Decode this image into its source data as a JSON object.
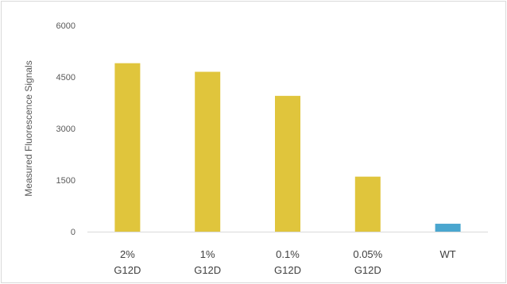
{
  "chart_data": {
    "type": "bar",
    "title": "",
    "xlabel": "",
    "ylabel": "Measured Fluorescence Signals",
    "ylim": [
      0,
      6000
    ],
    "yticks": [
      0,
      1500,
      3000,
      4500,
      6000
    ],
    "grid": false,
    "legend": "none",
    "categories": [
      [
        "2%",
        "G12D"
      ],
      [
        "1%",
        "G12D"
      ],
      [
        "0.1%",
        "G12D"
      ],
      [
        "0.05%",
        "G12D"
      ],
      [
        "WT"
      ]
    ],
    "values": [
      4900,
      4650,
      3950,
      1600,
      230
    ],
    "colors": [
      "#e0c53c",
      "#e0c53c",
      "#e0c53c",
      "#e0c53c",
      "#4aa6cf"
    ]
  }
}
